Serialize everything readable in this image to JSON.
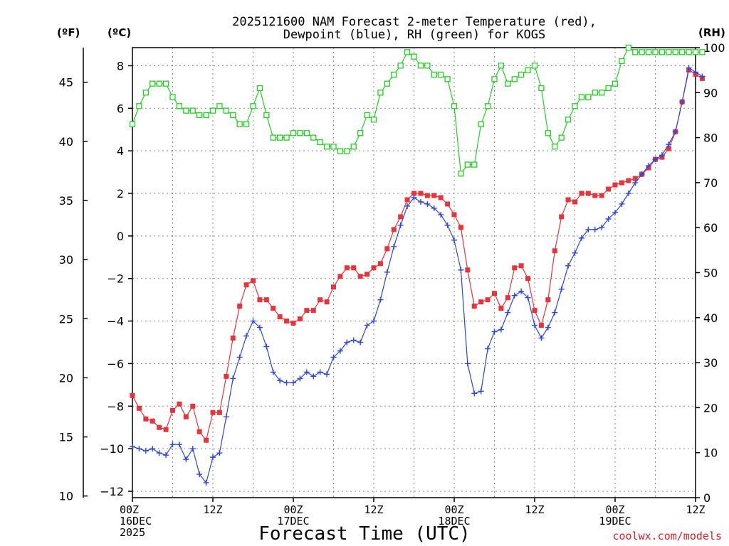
{
  "chart_data": {
    "type": "line",
    "title_line1": "2025121600 NAM Forecast 2-meter Temperature (red),",
    "title_line2": "Dewpoint (blue), RH (green) for KOGS",
    "xlabel": "Forecast Time (UTC)",
    "credit": "coolwx.com/models",
    "units": {
      "fahrenheit": "(ºF)",
      "celsius": "(ºC)",
      "rh": "(RH)"
    },
    "x_range_hours": [
      0,
      84
    ],
    "ylim_celsius": [
      -12.3,
      8.85
    ],
    "ylim_rh": [
      0,
      100
    ],
    "celsius_ticks": [
      "8",
      "6",
      "4",
      "2",
      "0",
      "−2",
      "−4",
      "−6",
      "−8",
      "−10",
      "−12"
    ],
    "celsius_tick_values": [
      8,
      6,
      4,
      2,
      0,
      -2,
      -4,
      -6,
      -8,
      -10,
      -12
    ],
    "fahrenheit_ticks": [
      "45",
      "40",
      "35",
      "30",
      "25",
      "20",
      "15",
      "10"
    ],
    "fahrenheit_tick_values": [
      45,
      40,
      35,
      30,
      25,
      20,
      15,
      10
    ],
    "rh_ticks": [
      "100",
      "90",
      "80",
      "70",
      "60",
      "50",
      "40",
      "30",
      "20",
      "10",
      "0"
    ],
    "rh_tick_values": [
      100,
      90,
      80,
      70,
      60,
      50,
      40,
      30,
      20,
      10,
      0
    ],
    "x_ticks": [
      {
        "hour": 0,
        "lines": [
          "00Z",
          "16DEC",
          "2025"
        ]
      },
      {
        "hour": 12,
        "lines": [
          "12Z"
        ]
      },
      {
        "hour": 24,
        "lines": [
          "00Z",
          "17DEC"
        ]
      },
      {
        "hour": 36,
        "lines": [
          "12Z"
        ]
      },
      {
        "hour": 48,
        "lines": [
          "00Z",
          "18DEC"
        ]
      },
      {
        "hour": 60,
        "lines": [
          "12Z"
        ]
      },
      {
        "hour": 72,
        "lines": [
          "00Z",
          "19DEC"
        ]
      },
      {
        "hour": 84,
        "lines": [
          "12Z"
        ]
      }
    ],
    "series": [
      {
        "name": "2-meter Temperature",
        "units": "degC",
        "color": "#e8333a",
        "marker": "square",
        "values": [
          -7.5,
          -8.1,
          -8.6,
          -8.7,
          -9.0,
          -9.1,
          -8.2,
          -7.9,
          -8.5,
          -8.0,
          -9.2,
          -9.6,
          -8.3,
          -8.3,
          -6.6,
          -4.8,
          -3.3,
          -2.3,
          -2.1,
          -3.0,
          -3.0,
          -3.4,
          -3.8,
          -4.0,
          -4.1,
          -3.9,
          -3.5,
          -3.5,
          -3.0,
          -3.1,
          -2.4,
          -1.9,
          -1.5,
          -1.5,
          -1.9,
          -1.8,
          -1.5,
          -1.3,
          -0.6,
          0.3,
          0.9,
          1.7,
          2.0,
          2.0,
          1.9,
          1.9,
          1.8,
          1.5,
          1.0,
          0.4,
          -1.6,
          -3.3,
          -3.1,
          -3.0,
          -2.7,
          -3.4,
          -2.9,
          -1.5,
          -1.4,
          -2.0,
          -3.5,
          -4.2,
          -3.0,
          -0.7,
          0.9,
          1.7,
          1.6,
          2.0,
          2.0,
          1.9,
          1.9,
          2.2,
          2.4,
          2.5,
          2.6,
          2.7,
          2.9,
          3.2,
          3.6,
          3.7,
          4.1,
          4.9,
          6.3,
          7.8,
          7.6,
          7.4
        ]
      },
      {
        "name": "Dewpoint",
        "units": "degC",
        "color": "#2b45e0",
        "marker": "plus",
        "values": [
          -9.9,
          -10.0,
          -10.1,
          -10.0,
          -10.2,
          -10.3,
          -9.8,
          -9.8,
          -10.5,
          -10.0,
          -11.2,
          -11.6,
          -10.4,
          -10.2,
          -8.5,
          -6.7,
          -5.7,
          -4.7,
          -4.0,
          -4.3,
          -5.2,
          -6.4,
          -6.8,
          -6.9,
          -6.9,
          -6.7,
          -6.4,
          -6.6,
          -6.4,
          -6.5,
          -5.7,
          -5.4,
          -5.0,
          -4.9,
          -5.0,
          -4.2,
          -4.0,
          -3.0,
          -1.7,
          -0.5,
          0.5,
          1.4,
          1.8,
          1.6,
          1.5,
          1.3,
          1.0,
          0.5,
          -0.2,
          -1.6,
          -6.0,
          -7.4,
          -7.3,
          -5.3,
          -4.5,
          -4.4,
          -3.6,
          -2.8,
          -2.6,
          -2.9,
          -4.2,
          -4.8,
          -4.3,
          -3.6,
          -2.5,
          -1.4,
          -0.8,
          -0.1,
          0.3,
          0.3,
          0.4,
          0.8,
          1.1,
          1.5,
          2.0,
          2.5,
          2.9,
          3.3,
          3.6,
          3.8,
          4.3,
          4.9,
          6.3,
          7.9,
          7.7,
          7.5
        ]
      },
      {
        "name": "RH",
        "units": "percent",
        "axis": "right",
        "color": "#22d022",
        "marker": "square-open",
        "values": [
          83,
          87,
          90,
          92,
          92,
          92,
          89,
          87,
          86,
          86,
          85,
          85,
          86,
          87,
          86,
          85,
          83,
          83,
          87,
          91,
          85,
          80,
          80,
          80,
          81,
          81,
          81,
          80,
          79,
          78,
          78,
          77,
          77,
          78,
          81,
          85,
          84,
          90,
          92,
          94,
          96,
          99,
          98,
          96,
          96,
          94,
          94,
          93,
          87,
          72,
          74,
          74,
          83,
          87,
          93,
          96,
          92,
          93,
          94,
          95,
          96,
          91,
          81,
          78,
          80,
          84,
          87,
          89,
          89,
          90,
          90,
          91,
          92,
          97,
          100,
          99,
          99,
          99,
          99,
          99,
          99,
          99,
          99,
          99,
          99,
          99
        ]
      }
    ]
  }
}
